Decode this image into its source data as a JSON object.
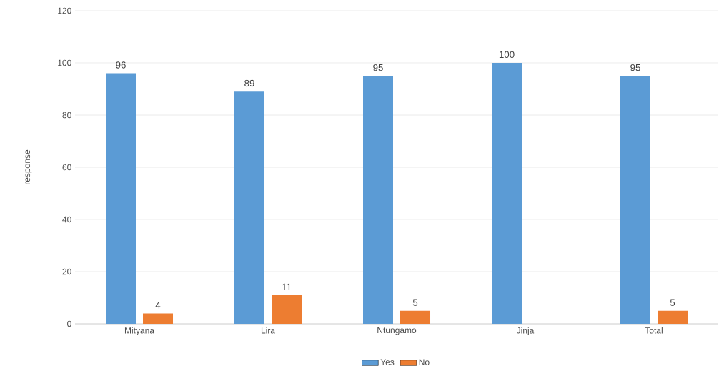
{
  "chart_data": {
    "type": "bar",
    "ylabel": "response",
    "categories": [
      "Mityana",
      "Lira",
      "Ntungamo",
      "Jinja",
      "Total"
    ],
    "series": [
      {
        "name": "Yes",
        "color": "#5b9bd5",
        "values": [
          96,
          89,
          95,
          100,
          95
        ],
        "value_labels": [
          "96",
          "89",
          "95",
          "100",
          "95"
        ]
      },
      {
        "name": "No",
        "color": "#ed7d31",
        "values": [
          4,
          11,
          5,
          null,
          5
        ],
        "value_labels": [
          "4",
          "11",
          "5",
          null,
          "5"
        ]
      }
    ],
    "ylim": [
      0,
      120
    ],
    "yticks": [
      0,
      20,
      40,
      60,
      80,
      100,
      120
    ],
    "grid": "y",
    "legend": "bottom"
  }
}
